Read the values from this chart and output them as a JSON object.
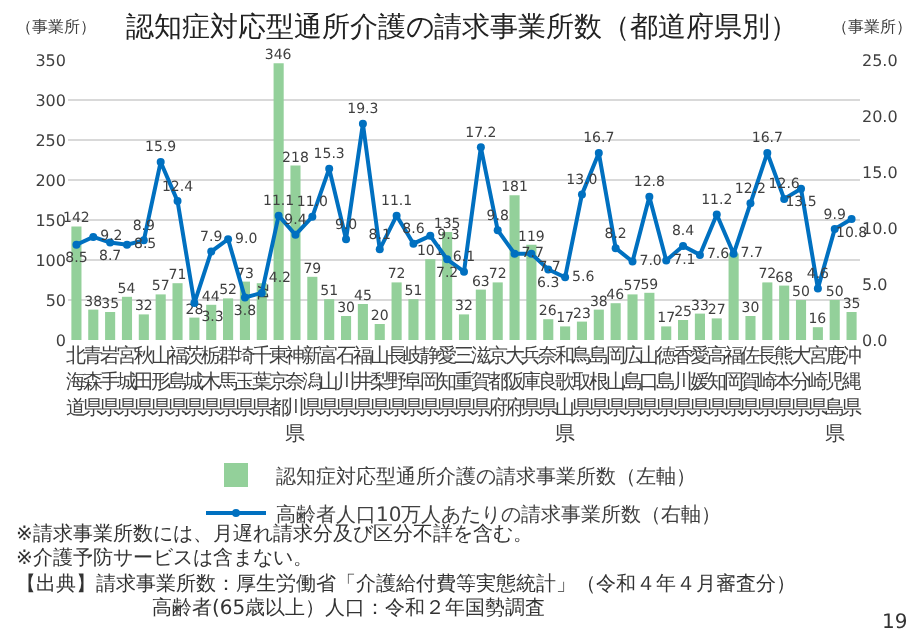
{
  "chart_data": {
    "type": "bar",
    "title": "認知症対応型通所介護の請求事業所数（都道府県別）",
    "ylabel": "（事業所）",
    "y2label": "（事業所）",
    "categories": [
      "北海道",
      "青森県",
      "岩手県",
      "宮城県",
      "秋田県",
      "山形県",
      "福島県",
      "茨城県",
      "栃木県",
      "群馬県",
      "埼玉県",
      "千葉県",
      "東京都",
      "神奈川県",
      "新潟県",
      "富山県",
      "石川県",
      "福井県",
      "山梨県",
      "長野県",
      "岐阜県",
      "静岡県",
      "愛知県",
      "三重県",
      "滋賀県",
      "京都府",
      "大阪府",
      "兵庫県",
      "奈良県",
      "和歌山県",
      "鳥取県",
      "島根県",
      "岡山県",
      "広島県",
      "山口県",
      "徳島県",
      "香川県",
      "愛媛県",
      "高知県",
      "福岡県",
      "佐賀県",
      "長崎県",
      "熊本県",
      "大分県",
      "宮崎県",
      "鹿児島県",
      "沖縄県"
    ],
    "series": [
      {
        "name": "認知症対応型通所介護の請求事業所数（左軸）",
        "color": "#93d09a",
        "values": [
          142,
          38,
          35,
          54,
          32,
          57,
          71,
          28,
          44,
          52,
          73,
          71,
          346,
          218,
          79,
          51,
          30,
          45,
          20,
          72,
          51,
          101,
          135,
          32,
          63,
          72,
          181,
          119,
          26,
          17,
          23,
          38,
          46,
          57,
          59,
          17,
          25,
          33,
          27,
          108,
          30,
          72,
          68,
          50,
          16,
          50,
          35
        ],
        "value_labels": [
          "142",
          "38",
          "35",
          "54",
          "32",
          "57",
          "71",
          "28",
          "44",
          "52",
          "73",
          "71",
          "346",
          "218",
          "79",
          "51",
          "30",
          "45",
          "20",
          "72",
          "51",
          "101",
          "135",
          "32",
          "63",
          "72",
          "181",
          "119",
          "26",
          "17",
          "23",
          "38",
          "46",
          "57",
          "59",
          "17",
          "25",
          "33",
          "27",
          null,
          "30",
          "72",
          "68",
          "50",
          "16",
          "50",
          "35"
        ]
      },
      {
        "name": "高齢者人口10万人あたりの請求事業所数（右軸）",
        "type": "line",
        "axis": "y2",
        "color": "#0070c0",
        "values": [
          8.5,
          9.2,
          8.7,
          8.5,
          8.9,
          15.9,
          12.4,
          3.3,
          7.9,
          9.0,
          3.8,
          4.2,
          11.1,
          9.4,
          11.0,
          15.3,
          9.0,
          19.3,
          8.1,
          11.1,
          8.6,
          9.3,
          7.2,
          6.1,
          17.2,
          9.8,
          7.7,
          7.7,
          6.3,
          5.6,
          13.0,
          16.7,
          8.2,
          7.0,
          12.8,
          7.1,
          8.4,
          7.6,
          11.2,
          7.7,
          12.2,
          16.7,
          12.6,
          13.5,
          4.6,
          9.9,
          10.8
        ],
        "value_labels": [
          "8.5",
          "9.2",
          "8.7",
          "8.5",
          "8.9",
          "15.9",
          "12.4",
          "3.3",
          "7.9",
          "9.0",
          "3.8",
          "4.2",
          "11.1",
          "9.4",
          "11.0",
          "15.3",
          "9.0",
          "19.3",
          "8.1",
          "11.1",
          "8.6",
          "9.3",
          "7.2",
          "6.1",
          "17.2",
          "9.8",
          "7.7",
          "7.7",
          "6.3",
          "5.6",
          "13.0",
          "16.7",
          "8.2",
          "7.0",
          "12.8",
          "7.1",
          "8.4",
          "7.6",
          "11.2",
          "7.7",
          "12.2",
          "16.7",
          "12.6",
          "13.5",
          "4.6",
          "9.9",
          "10.8"
        ]
      }
    ],
    "ylim": [
      0,
      350
    ],
    "yticks": [
      0,
      50,
      100,
      150,
      200,
      250,
      300,
      350
    ],
    "y2lim": [
      0,
      25
    ],
    "y2ticks": [
      {
        "value": 0,
        "label": "0.0"
      },
      {
        "value": 5,
        "label": "5.0"
      },
      {
        "value": 10,
        "label": "10.0"
      },
      {
        "value": 15,
        "label": "15.0"
      },
      {
        "value": 20,
        "label": "20.0"
      },
      {
        "value": 25,
        "label": "25.0"
      }
    ],
    "grid": "y",
    "legend": "bottom",
    "marker": "circle",
    "annotations": [
      "※請求事業所数には、月遅れ請求分及び区分不詳を含む。",
      "※介護予防サービスは含まない。",
      "【出典】請求事業所数：厚生労働省「介護給付費等実態統計」（令和４年４月審査分）",
      "高齢者(65歳以上）人口：令和２年国勢調査",
      "19"
    ]
  }
}
